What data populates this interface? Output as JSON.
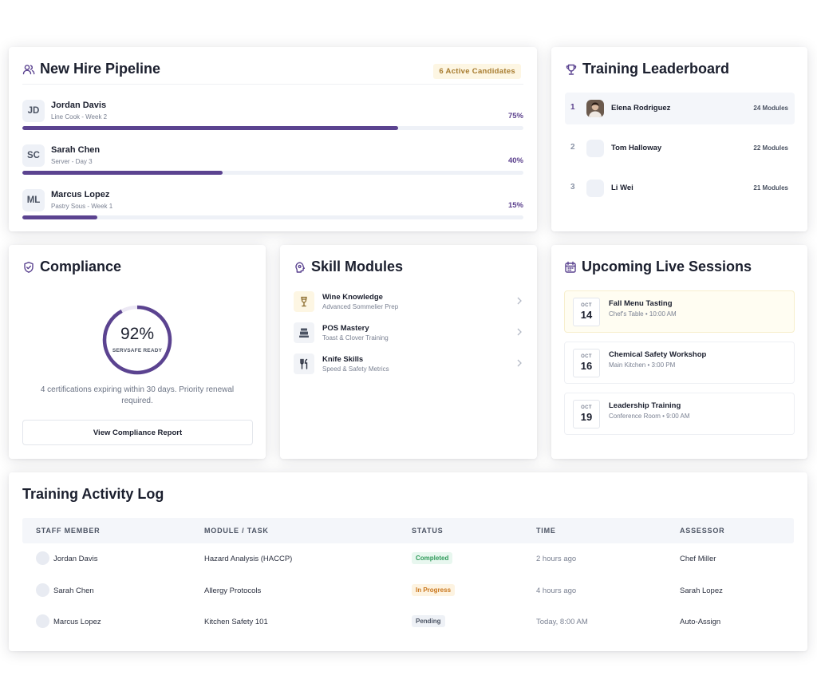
{
  "pipeline": {
    "title": "New Hire Pipeline",
    "badge": "6 Active Candidates",
    "candidates": [
      {
        "initials": "JD",
        "name": "Jordan Davis",
        "role": "Line Cook - Week 2",
        "progress_label": "75%",
        "progress": 0.75
      },
      {
        "initials": "SC",
        "name": "Sarah Chen",
        "role": "Server - Day 3",
        "progress_label": "40%",
        "progress": 0.4
      },
      {
        "initials": "ML",
        "name": "Marcus Lopez",
        "role": "Pastry Sous - Week 1",
        "progress_label": "15%",
        "progress": 0.15
      }
    ]
  },
  "leaderboard": {
    "title": "Training Leaderboard",
    "rows": [
      {
        "rank": "1",
        "name": "Elena Rodriguez",
        "modules": "24 Modules"
      },
      {
        "rank": "2",
        "name": "Tom Halloway",
        "modules": "22 Modules"
      },
      {
        "rank": "3",
        "name": "Li Wei",
        "modules": "21 Modules"
      }
    ]
  },
  "compliance": {
    "title": "Compliance",
    "percent_label": "92%",
    "percent": 0.92,
    "ring_label": "SERVSAFE READY",
    "note": "4 certifications expiring within 30 days. Priority renewal required.",
    "button": "View Compliance Report"
  },
  "skills": {
    "title": "Skill Modules",
    "items": [
      {
        "title": "Wine Knowledge",
        "subtitle": "Advanced Sommelier Prep",
        "icon": "wine-glass-icon"
      },
      {
        "title": "POS Mastery",
        "subtitle": "Toast & Clover Training",
        "icon": "cash-register-icon"
      },
      {
        "title": "Knife Skills",
        "subtitle": "Speed & Safety Metrics",
        "icon": "utensils-icon"
      }
    ]
  },
  "sessions": {
    "title": "Upcoming Live Sessions",
    "items": [
      {
        "month": "OCT",
        "day": "14",
        "title": "Fall Menu Tasting",
        "subtitle": "Chef's Table • 10:00 AM"
      },
      {
        "month": "OCT",
        "day": "16",
        "title": "Chemical Safety Workshop",
        "subtitle": "Main Kitchen • 3:00 PM"
      },
      {
        "month": "OCT",
        "day": "19",
        "title": "Leadership Training",
        "subtitle": "Conference Room • 9:00 AM"
      }
    ]
  },
  "activity": {
    "title": "Training Activity Log",
    "columns": [
      "STAFF MEMBER",
      "MODULE / TASK",
      "STATUS",
      "TIME",
      "ASSESSOR"
    ],
    "rows": [
      {
        "staff": "Jordan Davis",
        "module": "Hazard Analysis (HACCP)",
        "status": "Completed",
        "time": "2 hours ago",
        "assessor": "Chef Miller"
      },
      {
        "staff": "Sarah Chen",
        "module": "Allergy Protocols",
        "status": "In Progress",
        "time": "4 hours ago",
        "assessor": "Sarah Lopez"
      },
      {
        "staff": "Marcus Lopez",
        "module": "Kitchen Safety 101",
        "status": "Pending",
        "time": "Today, 8:00 AM",
        "assessor": "Auto-Assign"
      }
    ]
  },
  "colors": {
    "accent": "#5b4390",
    "amber_badge": "#a77b2e",
    "status_completed": "#2f9a5a",
    "status_in_progress": "#c9761c",
    "status_pending": "#4b5363"
  }
}
